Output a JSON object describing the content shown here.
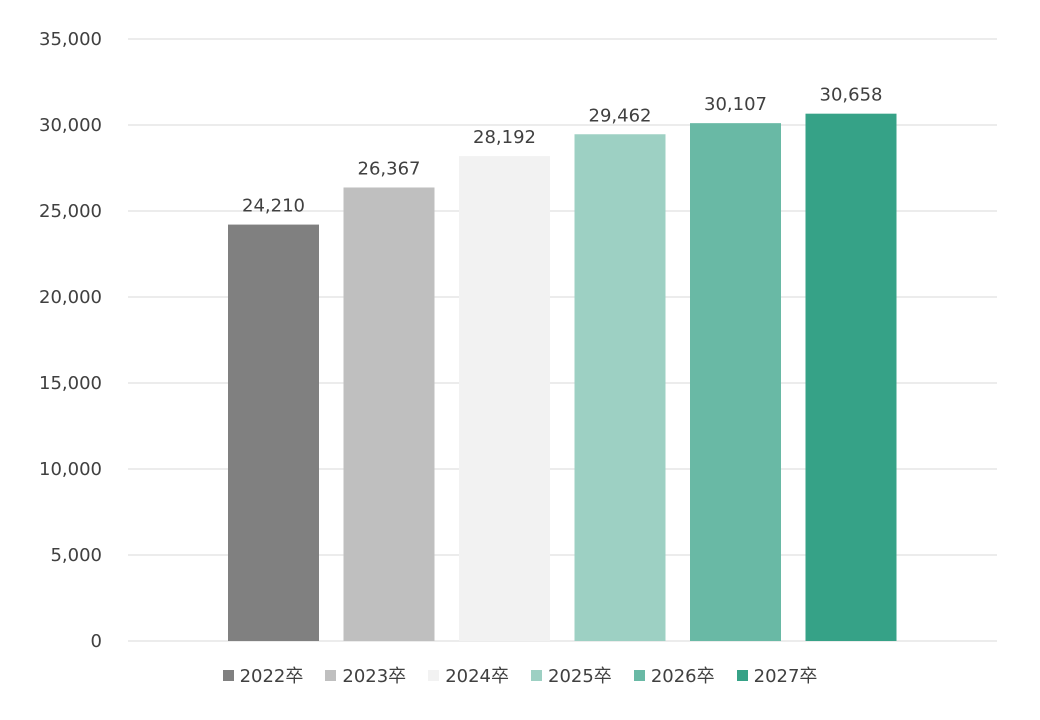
{
  "chart_data": {
    "type": "bar",
    "title": "",
    "xlabel": "",
    "ylabel": "",
    "categories": [
      "2022卒",
      "2023卒",
      "2024卒",
      "2025卒",
      "2026卒",
      "2027卒"
    ],
    "values": [
      24210,
      26367,
      28192,
      29462,
      30107,
      30658
    ],
    "value_labels": [
      "24,210",
      "26,367",
      "28,192",
      "29,462",
      "30,107",
      "30,658"
    ],
    "colors": [
      "#808080",
      "#bfbfbf",
      "#f2f2f2",
      "#9dd0c3",
      "#69b9a5",
      "#36a287"
    ],
    "ylim": [
      0,
      35000
    ],
    "yticks": [
      0,
      5000,
      10000,
      15000,
      20000,
      25000,
      30000,
      35000
    ],
    "ytick_labels": [
      "0",
      "5,000",
      "10,000",
      "15,000",
      "20,000",
      "25,000",
      "30,000",
      "35,000"
    ],
    "grid": true,
    "legend": {
      "position": "bottom",
      "entries": [
        "2022卒",
        "2023卒",
        "2024卒",
        "2025卒",
        "2026卒",
        "2027卒"
      ]
    }
  }
}
